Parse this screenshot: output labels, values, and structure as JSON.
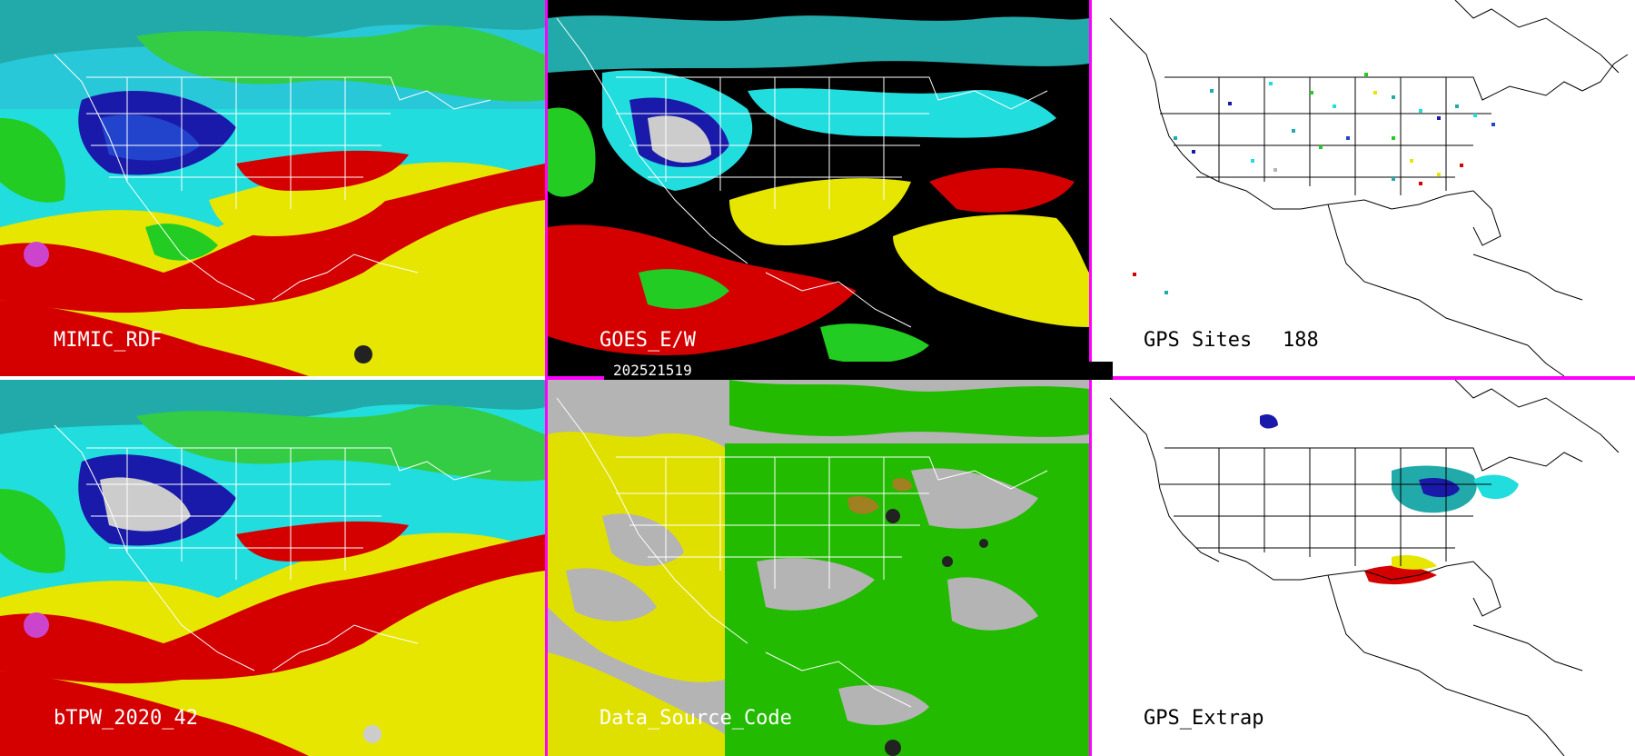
{
  "timestamp": "202521519",
  "panels": [
    {
      "id": "mimic",
      "label": "MIMIC_RDF"
    },
    {
      "id": "goes",
      "label": "GOES_E/W"
    },
    {
      "id": "gps_sites",
      "label": "GPS Sites",
      "count": "188"
    },
    {
      "id": "btpw",
      "label": "bTPW_2020_42"
    },
    {
      "id": "dsc",
      "label": "Data_Source_Code"
    },
    {
      "id": "gps_extrap",
      "label": "GPS_Extrap"
    }
  ],
  "colors": {
    "divider": "#ff00ff",
    "tpw_red": "#d40000",
    "tpw_yellow": "#e6e600",
    "tpw_green": "#22cc22",
    "tpw_cyan": "#22dddd",
    "tpw_blue": "#1a1aaa",
    "dsc_yellow": "#e0e000",
    "dsc_green": "#22bb00",
    "dsc_gray": "#b4b4b4"
  }
}
